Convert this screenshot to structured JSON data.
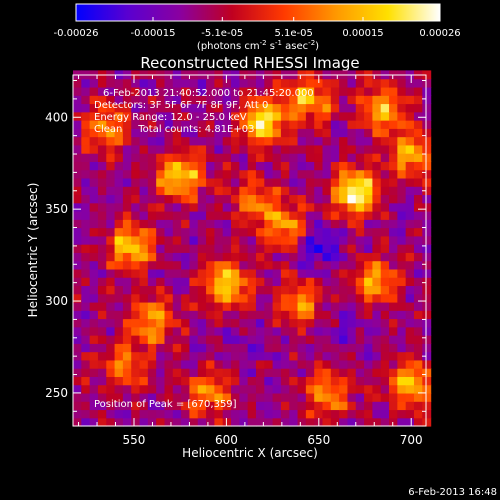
{
  "chart_data": {
    "type": "heatmap",
    "title": "Reconstructed RHESSI Image",
    "xlabel": "Heliocentric X (arcsec)",
    "ylabel": "Heliocentric Y (arcsec)",
    "xlim": [
      517,
      708
    ],
    "ylim": [
      232,
      423
    ],
    "x_ticks": [
      550,
      600,
      650,
      700
    ],
    "y_ticks": [
      250,
      300,
      350,
      400
    ],
    "colorbar": {
      "unit_line1": "(photons cm",
      "unit_exp1": "-2",
      "unit_line2": " s",
      "unit_exp2": "-1",
      "unit_line3": " asec",
      "unit_exp3": "-2",
      "unit_close": ")",
      "range": [
        -0.00026,
        0.00026
      ],
      "tick_labels": [
        "-0.00026",
        "-0.00015",
        "-5.1e-05",
        "5.1e-05",
        "0.00015",
        "0.00026"
      ],
      "colors": [
        "#0000ff",
        "#5a00d0",
        "#8a00a0",
        "#c00020",
        "#ff3a00",
        "#ff9800",
        "#ffe000",
        "#ffffff"
      ]
    },
    "annotations": {
      "time_range": "6-Feb-2013 21:40:52.000 to 21:45:20.000",
      "detectors": "Detectors: 3F 5F 6F 7F 8F 9F, Att 0",
      "energy": "Energy Range: 12.0 - 25.0 keV",
      "clean": "Clean     Total counts: 4.81E+03",
      "peak": "Position of Peak = [670,359]"
    },
    "peak_position": [
      670,
      359
    ],
    "hotspots": [
      {
        "x": 670,
        "y": 359,
        "v": 0.00026
      },
      {
        "x": 620,
        "y": 398,
        "v": 0.0002
      },
      {
        "x": 575,
        "y": 368,
        "v": 0.00018
      },
      {
        "x": 548,
        "y": 330,
        "v": 0.00017
      },
      {
        "x": 600,
        "y": 310,
        "v": 0.00018
      },
      {
        "x": 560,
        "y": 290,
        "v": 0.00012
      },
      {
        "x": 632,
        "y": 340,
        "v": 0.00012
      },
      {
        "x": 645,
        "y": 410,
        "v": 0.00014
      },
      {
        "x": 685,
        "y": 405,
        "v": 0.00014
      },
      {
        "x": 700,
        "y": 255,
        "v": 0.00015
      },
      {
        "x": 680,
        "y": 310,
        "v": 0.00013
      },
      {
        "x": 640,
        "y": 300,
        "v": 0.0001
      },
      {
        "x": 535,
        "y": 395,
        "v": 0.0001
      },
      {
        "x": 590,
        "y": 250,
        "v": 0.0001
      },
      {
        "x": 655,
        "y": 250,
        "v": 0.00011
      },
      {
        "x": 545,
        "y": 265,
        "v": 9e-05
      },
      {
        "x": 700,
        "y": 380,
        "v": 0.00013
      },
      {
        "x": 615,
        "y": 355,
        "v": 8e-05
      }
    ],
    "coldspots": [
      {
        "x": 650,
        "y": 330,
        "v": -0.00022
      },
      {
        "x": 668,
        "y": 290,
        "v": -0.00016
      },
      {
        "x": 610,
        "y": 275,
        "v": -0.00012
      },
      {
        "x": 690,
        "y": 350,
        "v": -0.00012
      },
      {
        "x": 560,
        "y": 240,
        "v": -0.0001
      },
      {
        "x": 530,
        "y": 345,
        "v": -0.00011
      },
      {
        "x": 595,
        "y": 385,
        "v": -9e-05
      },
      {
        "x": 625,
        "y": 240,
        "v": -9e-05
      }
    ]
  },
  "footer": {
    "timestamp": "6-Feb-2013 16:48"
  }
}
